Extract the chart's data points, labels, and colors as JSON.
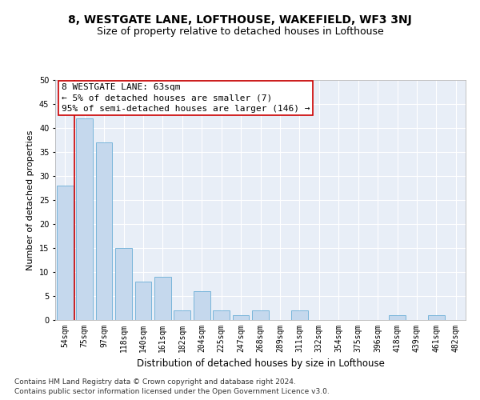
{
  "title": "8, WESTGATE LANE, LOFTHOUSE, WAKEFIELD, WF3 3NJ",
  "subtitle": "Size of property relative to detached houses in Lofthouse",
  "xlabel": "Distribution of detached houses by size in Lofthouse",
  "ylabel": "Number of detached properties",
  "categories": [
    "54sqm",
    "75sqm",
    "97sqm",
    "118sqm",
    "140sqm",
    "161sqm",
    "182sqm",
    "204sqm",
    "225sqm",
    "247sqm",
    "268sqm",
    "289sqm",
    "311sqm",
    "332sqm",
    "354sqm",
    "375sqm",
    "396sqm",
    "418sqm",
    "439sqm",
    "461sqm",
    "482sqm"
  ],
  "values": [
    28,
    42,
    37,
    15,
    8,
    9,
    2,
    6,
    2,
    1,
    2,
    0,
    2,
    0,
    0,
    0,
    0,
    1,
    0,
    1,
    0
  ],
  "bar_color": "#c5d8ed",
  "bar_edge_color": "#6aaed6",
  "annotation_text": "8 WESTGATE LANE: 63sqm\n← 5% of detached houses are smaller (7)\n95% of semi-detached houses are larger (146) →",
  "vline_color": "#cc0000",
  "ylim": [
    0,
    50
  ],
  "yticks": [
    0,
    5,
    10,
    15,
    20,
    25,
    30,
    35,
    40,
    45,
    50
  ],
  "plot_bg_color": "#e8eef7",
  "footer1": "Contains HM Land Registry data © Crown copyright and database right 2024.",
  "footer2": "Contains public sector information licensed under the Open Government Licence v3.0.",
  "title_fontsize": 10,
  "subtitle_fontsize": 9,
  "xlabel_fontsize": 8.5,
  "ylabel_fontsize": 8,
  "tick_fontsize": 7,
  "annotation_fontsize": 8,
  "footer_fontsize": 6.5
}
